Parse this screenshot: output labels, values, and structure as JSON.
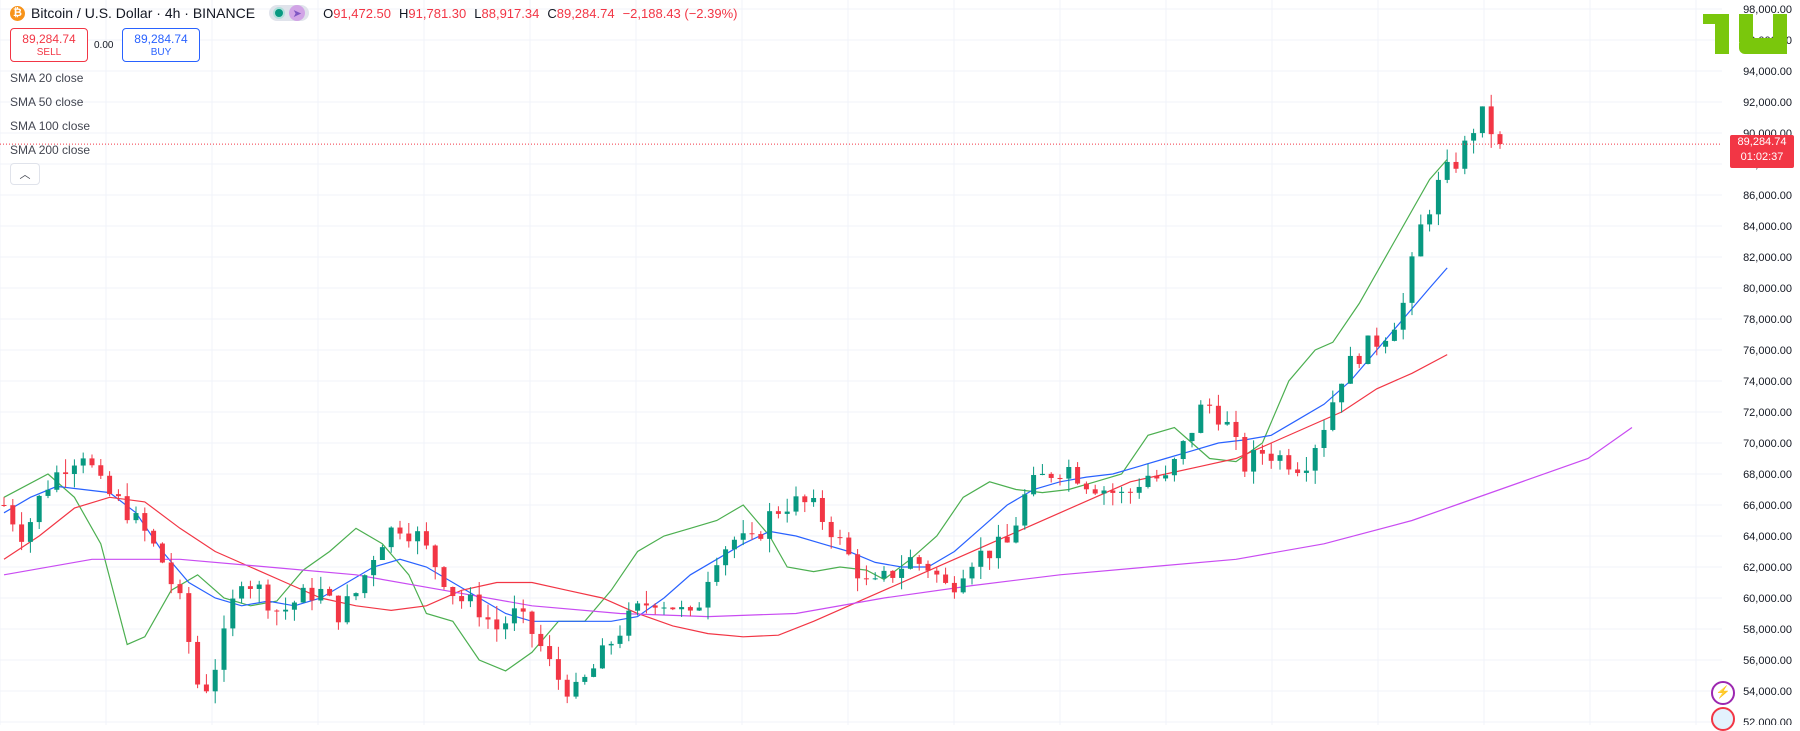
{
  "header": {
    "symbol_icon": "₿",
    "title": "Bitcoin / U.S. Dollar · 4h · BINANCE",
    "ohlc": {
      "o_label": "O",
      "o": "91,472.50",
      "h_label": "H",
      "h": "91,781.30",
      "l_label": "L",
      "l": "88,917.34",
      "c_label": "C",
      "c": "89,284.74",
      "change": "−2,188.43 (−2.39%)"
    }
  },
  "trade": {
    "sell_price": "89,284.74",
    "sell_label": "SELL",
    "spread": "0.00",
    "buy_price": "89,284.74",
    "buy_label": "BUY"
  },
  "indicators": [
    {
      "name": "SMA",
      "params": "20 close",
      "color": "#4caf50"
    },
    {
      "name": "SMA",
      "params": "50 close",
      "color": "#2962ff"
    },
    {
      "name": "SMA",
      "params": "100 close",
      "color": "#f23645"
    },
    {
      "name": "SMA",
      "params": "200 close",
      "color": "#c94cf2"
    }
  ],
  "price_tag": {
    "price": "89,284.74",
    "countdown": "01:02:37"
  },
  "colors": {
    "up": "#089981",
    "down": "#f23645",
    "axis_text": "#131722",
    "grid": "#f0f3fa"
  },
  "chart_data": {
    "type": "candlestick",
    "ylim": [
      52000,
      98000
    ],
    "y_ticks": [
      "52,000.00",
      "54,000.00",
      "56,000.00",
      "58,000.00",
      "60,000.00",
      "62,000.00",
      "64,000.00",
      "66,000.00",
      "68,000.00",
      "70,000.00",
      "72,000.00",
      "74,000.00",
      "76,000.00",
      "78,000.00",
      "80,000.00",
      "82,000.00",
      "84,000.00",
      "86,000.00",
      "88,000.00",
      "90,000.00",
      "92,000.00",
      "94,000.00",
      "96,000.00",
      "98,000.00"
    ],
    "last_price": 89284.74,
    "close_path": [
      66000,
      64000,
      67000,
      68500,
      69500,
      67000,
      66000,
      64500,
      62500,
      59500,
      53500,
      56500,
      61500,
      60500,
      59000,
      60000,
      60500,
      59000,
      60500,
      63500,
      64800,
      64000,
      62000,
      60000,
      59500,
      58000,
      59000,
      57500,
      55000,
      53800,
      55500,
      57500,
      59000,
      60000,
      59500,
      58500,
      62500,
      63800,
      63500,
      65500,
      66200,
      66000,
      64500,
      62500,
      60500,
      61500,
      62500,
      62000,
      60500,
      62500,
      63000,
      63500,
      67000,
      68000,
      68500,
      67500,
      67000,
      66500,
      68000,
      67500,
      70000,
      72700,
      71500,
      68500,
      69500,
      69000,
      68500,
      71000,
      74500,
      76000,
      76800,
      78500,
      84000,
      87000,
      88500,
      91300,
      89284.74
    ],
    "sma_series": [
      {
        "ref": 0,
        "values": [
          [
            0,
            66500
          ],
          [
            5,
            68000
          ],
          [
            8,
            66500
          ],
          [
            11,
            63500
          ],
          [
            14,
            57000
          ],
          [
            16,
            57500
          ],
          [
            19,
            60500
          ],
          [
            22,
            61500
          ],
          [
            25,
            60000
          ],
          [
            28,
            59500
          ],
          [
            31,
            59800
          ],
          [
            34,
            61800
          ],
          [
            37,
            63000
          ],
          [
            40,
            64500
          ],
          [
            43,
            63500
          ],
          [
            46,
            61500
          ],
          [
            48,
            59000
          ],
          [
            51,
            58500
          ],
          [
            54,
            56000
          ],
          [
            57,
            55300
          ],
          [
            60,
            56500
          ],
          [
            63,
            58500
          ],
          [
            66,
            58500
          ],
          [
            69,
            60500
          ],
          [
            72,
            63000
          ],
          [
            75,
            64000
          ],
          [
            78,
            64500
          ],
          [
            81,
            65000
          ],
          [
            84,
            66000
          ],
          [
            87,
            64000
          ],
          [
            89,
            62000
          ],
          [
            92,
            61700
          ],
          [
            95,
            62000
          ],
          [
            98,
            61800
          ],
          [
            100,
            61200
          ],
          [
            103,
            62500
          ],
          [
            106,
            64000
          ],
          [
            109,
            66500
          ],
          [
            112,
            67500
          ],
          [
            115,
            67000
          ],
          [
            118,
            66800
          ],
          [
            121,
            67000
          ],
          [
            124,
            67500
          ],
          [
            127,
            68000
          ],
          [
            130,
            70500
          ],
          [
            133,
            71000
          ],
          [
            135,
            70000
          ],
          [
            137,
            69000
          ],
          [
            140,
            68800
          ],
          [
            143,
            70000
          ],
          [
            146,
            74000
          ],
          [
            149,
            76000
          ],
          [
            151,
            76500
          ],
          [
            154,
            79000
          ],
          [
            158,
            83000
          ],
          [
            162,
            87000
          ],
          [
            164,
            88300
          ]
        ]
      },
      {
        "ref": 1,
        "values": [
          [
            0,
            65500
          ],
          [
            3,
            66500
          ],
          [
            6,
            67200
          ],
          [
            9,
            67000
          ],
          [
            12,
            66800
          ],
          [
            15,
            65500
          ],
          [
            18,
            63000
          ],
          [
            21,
            61000
          ],
          [
            24,
            60000
          ],
          [
            27,
            59500
          ],
          [
            30,
            59800
          ],
          [
            33,
            59500
          ],
          [
            36,
            60000
          ],
          [
            39,
            61000
          ],
          [
            42,
            62000
          ],
          [
            45,
            62500
          ],
          [
            48,
            62000
          ],
          [
            51,
            61000
          ],
          [
            54,
            60000
          ],
          [
            57,
            59000
          ],
          [
            60,
            58500
          ],
          [
            63,
            58500
          ],
          [
            66,
            58500
          ],
          [
            69,
            58500
          ],
          [
            72,
            58800
          ],
          [
            75,
            60000
          ],
          [
            78,
            61500
          ],
          [
            81,
            62500
          ],
          [
            84,
            63500
          ],
          [
            87,
            64300
          ],
          [
            90,
            64000
          ],
          [
            93,
            63500
          ],
          [
            96,
            63000
          ],
          [
            99,
            62300
          ],
          [
            102,
            62000
          ],
          [
            105,
            62000
          ],
          [
            108,
            63000
          ],
          [
            111,
            64500
          ],
          [
            114,
            66000
          ],
          [
            117,
            67000
          ],
          [
            120,
            67500
          ],
          [
            123,
            67800
          ],
          [
            126,
            68000
          ],
          [
            129,
            68500
          ],
          [
            132,
            69000
          ],
          [
            135,
            69500
          ],
          [
            138,
            70000
          ],
          [
            141,
            70200
          ],
          [
            144,
            70500
          ],
          [
            147,
            71500
          ],
          [
            150,
            72500
          ],
          [
            153,
            74000
          ],
          [
            156,
            76000
          ],
          [
            159,
            78000
          ],
          [
            162,
            80000
          ],
          [
            164,
            81300
          ]
        ]
      },
      {
        "ref": 2,
        "values": [
          [
            0,
            62500
          ],
          [
            4,
            64000
          ],
          [
            8,
            65800
          ],
          [
            12,
            66500
          ],
          [
            16,
            66200
          ],
          [
            20,
            64500
          ],
          [
            24,
            63000
          ],
          [
            28,
            62000
          ],
          [
            32,
            61000
          ],
          [
            36,
            60000
          ],
          [
            40,
            59500
          ],
          [
            44,
            59200
          ],
          [
            48,
            59500
          ],
          [
            52,
            60500
          ],
          [
            56,
            61000
          ],
          [
            60,
            61000
          ],
          [
            64,
            60500
          ],
          [
            68,
            60000
          ],
          [
            72,
            59000
          ],
          [
            76,
            58200
          ],
          [
            80,
            57700
          ],
          [
            84,
            57500
          ],
          [
            88,
            57600
          ],
          [
            92,
            58500
          ],
          [
            96,
            59500
          ],
          [
            100,
            60500
          ],
          [
            104,
            61500
          ],
          [
            108,
            62500
          ],
          [
            112,
            63500
          ],
          [
            116,
            64500
          ],
          [
            120,
            65500
          ],
          [
            124,
            66500
          ],
          [
            128,
            67500
          ],
          [
            132,
            68000
          ],
          [
            136,
            68500
          ],
          [
            140,
            69000
          ],
          [
            144,
            70000
          ],
          [
            148,
            71000
          ],
          [
            152,
            72000
          ],
          [
            156,
            73500
          ],
          [
            160,
            74500
          ],
          [
            164,
            75700
          ]
        ]
      },
      {
        "ref": 3,
        "values": [
          [
            0,
            61500
          ],
          [
            10,
            62500
          ],
          [
            20,
            62500
          ],
          [
            30,
            62000
          ],
          [
            40,
            61500
          ],
          [
            50,
            60500
          ],
          [
            60,
            59500
          ],
          [
            70,
            59000
          ],
          [
            80,
            58800
          ],
          [
            90,
            59000
          ],
          [
            100,
            60000
          ],
          [
            110,
            60800
          ],
          [
            120,
            61500
          ],
          [
            130,
            62000
          ],
          [
            140,
            62500
          ],
          [
            150,
            63500
          ],
          [
            160,
            65000
          ],
          [
            165,
            66000
          ],
          [
            170,
            67000
          ],
          [
            180,
            69000
          ],
          [
            185,
            71000
          ]
        ]
      }
    ]
  }
}
